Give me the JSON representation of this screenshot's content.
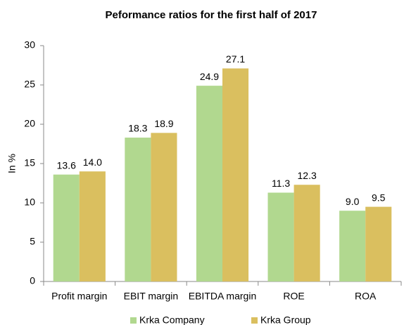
{
  "chart_data": {
    "type": "bar",
    "title": "Peformance ratios for the first half of 2017",
    "y_label": "In %",
    "categories": [
      "Profit margin",
      "EBIT margin",
      "EBITDA margin",
      "ROE",
      "ROA"
    ],
    "series": [
      {
        "name": "Krka Company",
        "color": "#b1d88f",
        "values": [
          13.6,
          18.3,
          24.9,
          11.3,
          9.0
        ],
        "value_labels": [
          "13.6",
          "18.3",
          "24.9",
          "11.3",
          "9.0"
        ]
      },
      {
        "name": "Krka Group",
        "color": "#dabf5f",
        "values": [
          14.0,
          18.9,
          27.1,
          12.3,
          9.5
        ],
        "value_labels": [
          "14.0",
          "18.9",
          "27.1",
          "12.3",
          "9.5"
        ]
      }
    ],
    "ylim": [
      0,
      30
    ],
    "yticks": [
      0,
      5,
      10,
      15,
      20,
      25,
      30
    ],
    "grid": false,
    "legend": "bottom"
  }
}
